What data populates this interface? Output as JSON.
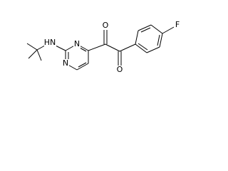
{
  "atoms": [
    {
      "label": "HN"
    },
    {
      "label": "N"
    },
    {
      "label": "N"
    },
    {
      "label": "O"
    },
    {
      "label": "O"
    },
    {
      "label": "F"
    }
  ]
}
